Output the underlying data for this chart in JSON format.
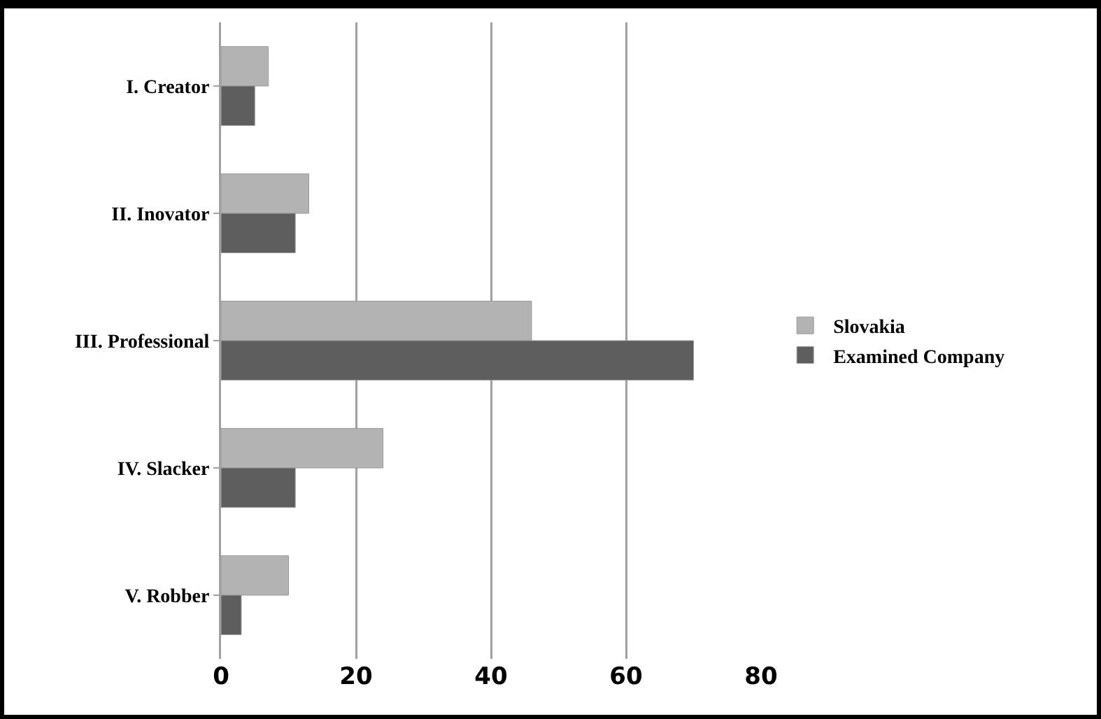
{
  "chart_data": {
    "type": "bar",
    "orientation": "horizontal",
    "categories": [
      "I. Creator",
      "II. Inovator",
      "III. Professional",
      "IV. Slacker",
      "V. Robber"
    ],
    "series": [
      {
        "name": "Slovakia",
        "color": "#b3b3b3",
        "values": [
          7,
          13,
          46,
          24,
          10
        ]
      },
      {
        "name": "Examined Company",
        "color": "#5e5e5e",
        "values": [
          5,
          11,
          70,
          11,
          3
        ]
      }
    ],
    "xlim": [
      0,
      80
    ],
    "xticks": [
      0,
      20,
      40,
      60,
      80
    ],
    "grid": "x",
    "legend": "right"
  }
}
